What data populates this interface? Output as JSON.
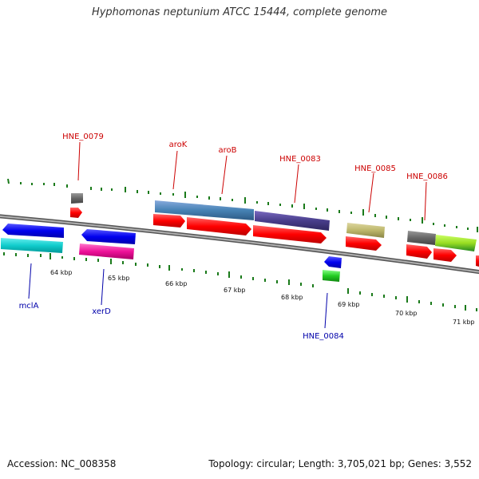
{
  "title": "Hyphomonas neptunium ATCC 15444, complete genome",
  "footer": {
    "accession": "Accession: NC_008358",
    "stats": "Topology: circular; Length: 3,705,021 bp; Genes: 3,552"
  },
  "scale_labels": [
    "64 kbp",
    "65 kbp",
    "66 kbp",
    "67 kbp",
    "68 kbp",
    "69 kbp",
    "70 kbp",
    "71 kbp"
  ],
  "genes_top": [
    "HNE_0079",
    "aroK",
    "aroB",
    "HNE_0083",
    "HNE_0085",
    "HNE_0086"
  ],
  "genes_bottom": [
    "mclA",
    "xerD",
    "HNE_0084"
  ],
  "colors": {
    "label_top": "#cc0000",
    "label_bottom": "#0000aa",
    "tick": "#1a7a1a",
    "backbone": "#888888",
    "cds": "#ff0000"
  }
}
